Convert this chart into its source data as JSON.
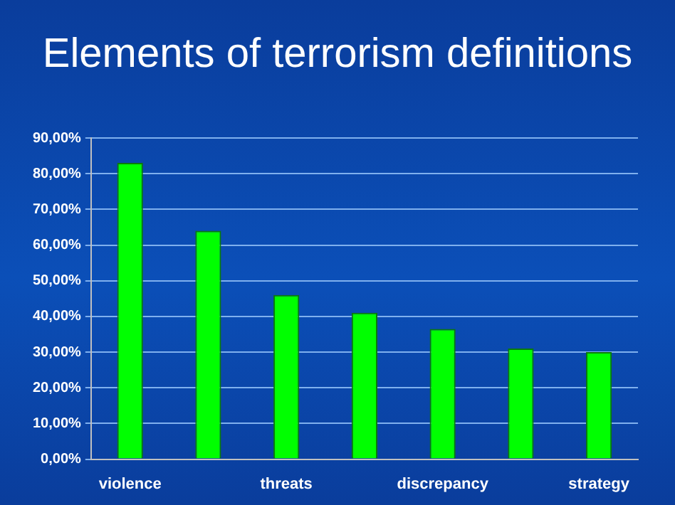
{
  "chart_data": {
    "type": "bar",
    "title": "Elements of terrorism definitions",
    "categories": [
      "violence",
      null,
      "threats",
      null,
      "discrepancy",
      null,
      "strategy"
    ],
    "values": [
      83,
      64,
      46,
      41,
      36.5,
      31,
      30
    ],
    "color": "#00ff00",
    "ylim": [
      0,
      90
    ],
    "yticks": [
      {
        "value": 0,
        "label": "0,00%"
      },
      {
        "value": 10,
        "label": "10,00%"
      },
      {
        "value": 20,
        "label": "20,00%"
      },
      {
        "value": 30,
        "label": "30,00%"
      },
      {
        "value": 40,
        "label": "40,00%"
      },
      {
        "value": 50,
        "label": "50,00%"
      },
      {
        "value": 60,
        "label": "60,00%"
      },
      {
        "value": 70,
        "label": "70,00%"
      },
      {
        "value": 80,
        "label": "80,00%"
      },
      {
        "value": 90,
        "label": "90,00%"
      }
    ],
    "grid": "y"
  }
}
